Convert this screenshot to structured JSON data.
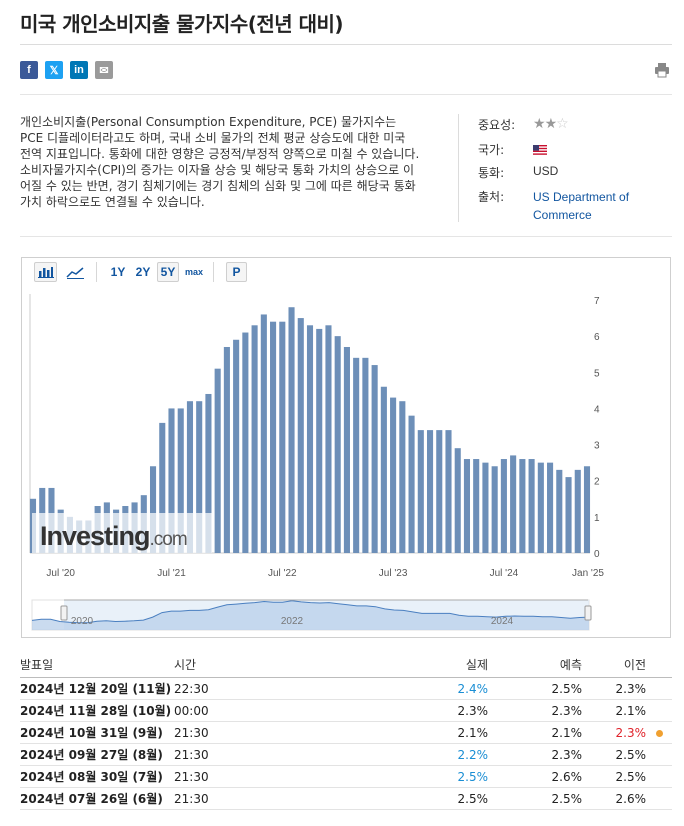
{
  "page": {
    "title": "미국 개인소비지출 물가지수(전년 대비)"
  },
  "share": {
    "facebook": "f",
    "twitter": "𝕏",
    "linkedin": "in",
    "email": "✉",
    "colors": {
      "facebook": "#3b5998",
      "twitter": "#1da1f2",
      "linkedin": "#0077b5",
      "email": "#9a9a9a"
    }
  },
  "description": "개인소비지출(Personal Consumption Expenditure, PCE) 물가지수는 PCE 디플레이터라고도 하며, 국내 소비 물가의 전체 평균 상승도에 대한 미국 전역 지표입니다. 통화에 대한 영향은 긍정적/부정적 양쪽으로 미칠 수 있습니다. 소비자물가지수(CPI)의 증가는 이자율 상승 및 해당국 통화 가치의 상승으로 이어질 수 있는 반면, 경기 침체기에는 경기 침체의 심화 및 그에 따른 해당국 통화 가치 하락으로도 연결될 수 있습니다.",
  "meta": {
    "importance_label": "중요성:",
    "importance_stars": 2,
    "importance_max": 3,
    "country_label": "국가:",
    "currency_label": "통화:",
    "currency_value": "USD",
    "source_label": "출처:",
    "source_value": "US Department of Commerce"
  },
  "toolbar": {
    "ranges": [
      "1Y",
      "2Y",
      "5Y",
      "max"
    ],
    "active_range": "5Y",
    "p_label": "P"
  },
  "chart_data": {
    "type": "bar",
    "x_ticks": [
      "Jul '20",
      "Jul '21",
      "Jul '22",
      "Jul '23",
      "Jul '24",
      "Jan '25"
    ],
    "y_ticks": [
      "0",
      "1",
      "2",
      "3",
      "4",
      "5",
      "6",
      "7"
    ],
    "ylim": [
      0,
      7
    ],
    "color": "#6d8fb8",
    "values": [
      1.5,
      1.8,
      1.8,
      1.2,
      1.0,
      0.9,
      0.9,
      1.3,
      1.4,
      1.2,
      1.3,
      1.4,
      1.6,
      2.4,
      3.6,
      4.0,
      4.0,
      4.2,
      4.2,
      4.4,
      5.1,
      5.7,
      5.9,
      6.1,
      6.3,
      6.6,
      6.4,
      6.4,
      6.8,
      6.5,
      6.3,
      6.2,
      6.3,
      6.0,
      5.7,
      5.4,
      5.4,
      5.2,
      4.6,
      4.3,
      4.2,
      3.8,
      3.4,
      3.4,
      3.4,
      3.4,
      2.9,
      2.6,
      2.6,
      2.5,
      2.4,
      2.6,
      2.7,
      2.6,
      2.6,
      2.5,
      2.5,
      2.3,
      2.1,
      2.3,
      2.4
    ],
    "navigator": {
      "labels": [
        "2020",
        "2022",
        "2024"
      ]
    },
    "watermark": "Investing.com"
  },
  "table": {
    "headers": {
      "date": "발표일",
      "time": "시간",
      "actual": "실제",
      "forecast": "예측",
      "previous": "이전"
    },
    "rows": [
      {
        "date": "2024년 12월 20일 (11월)",
        "time": "22:30",
        "actual": "2.4%",
        "actual_color": "#1a8ed4",
        "forecast": "2.5%",
        "previous": "2.3%",
        "previous_color": "#222222",
        "revised": false
      },
      {
        "date": "2024년 11월 28일 (10월)",
        "time": "00:00",
        "actual": "2.3%",
        "actual_color": "#222222",
        "forecast": "2.3%",
        "previous": "2.1%",
        "previous_color": "#222222",
        "revised": false
      },
      {
        "date": "2024년 10월 31일 (9월)",
        "time": "21:30",
        "actual": "2.1%",
        "actual_color": "#222222",
        "forecast": "2.1%",
        "previous": "2.3%",
        "previous_color": "#e0232b",
        "revised": true
      },
      {
        "date": "2024년 09월 27일 (8월)",
        "time": "21:30",
        "actual": "2.2%",
        "actual_color": "#1a8ed4",
        "forecast": "2.3%",
        "previous": "2.5%",
        "previous_color": "#222222",
        "revised": false
      },
      {
        "date": "2024년 08월 30일 (7월)",
        "time": "21:30",
        "actual": "2.5%",
        "actual_color": "#1a8ed4",
        "forecast": "2.6%",
        "previous": "2.5%",
        "previous_color": "#222222",
        "revised": false
      },
      {
        "date": "2024년 07월 26일 (6월)",
        "time": "21:30",
        "actual": "2.5%",
        "actual_color": "#222222",
        "forecast": "2.5%",
        "previous": "2.6%",
        "previous_color": "#222222",
        "revised": false
      }
    ]
  }
}
